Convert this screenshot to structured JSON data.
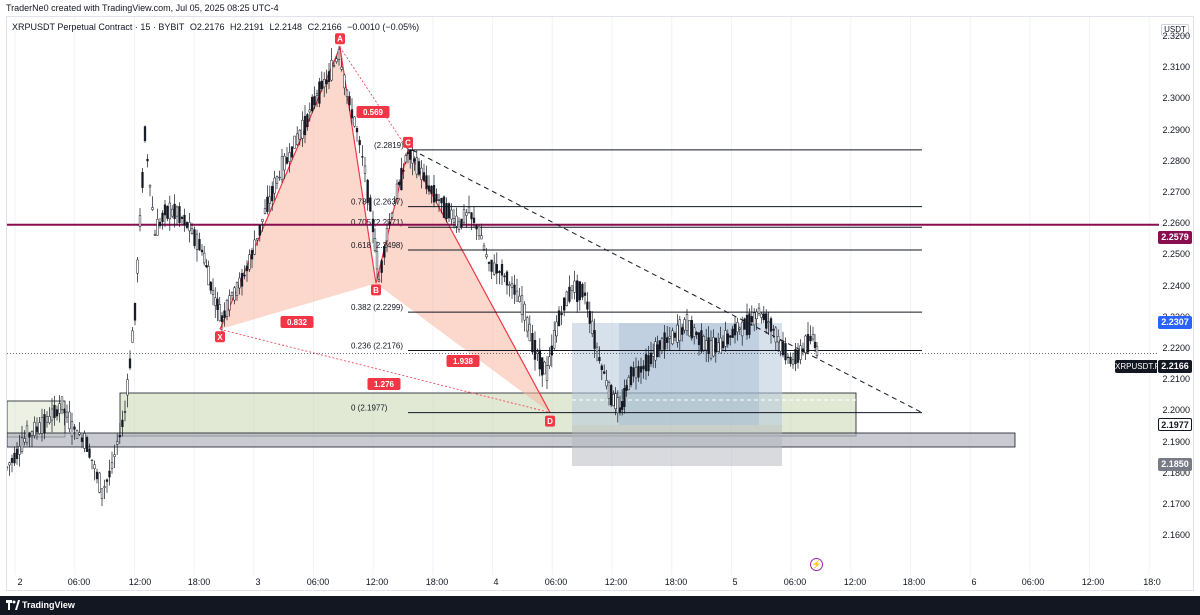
{
  "header": {
    "credit": "TraderNe0 created with TradingView.com, Jul 05, 2025 08:25 UTC-4"
  },
  "legend": {
    "symbol": "XRPUSDT Perpetual Contract · 15 · BYBIT",
    "open": "O2.2176",
    "high": "H2.2191",
    "low": "L2.2148",
    "close": "C2.2166",
    "change": "−0.0010 (−0.05%)"
  },
  "price_axis": {
    "currency": "USDT",
    "ticks": [
      "2.3200",
      "2.3100",
      "2.3000",
      "2.2900",
      "2.2800",
      "2.2700",
      "2.2600",
      "2.2500",
      "2.2400",
      "2.2300",
      "2.2200",
      "2.2100",
      "2.2000",
      "2.1900",
      "2.1800",
      "2.1700",
      "2.1600"
    ],
    "labels": {
      "magenta_line": "2.2579",
      "blue_level": "2.2307",
      "current": "2.2166",
      "d_level": "2.1977",
      "gray_level": "2.1850"
    },
    "symbol_tag": "XRPUSDT.P"
  },
  "time_axis": {
    "ticks": [
      "2",
      "06:00",
      "12:00",
      "18:00",
      "3",
      "06:00",
      "12:00",
      "18:00",
      "4",
      "06:00",
      "12:00",
      "18:00",
      "5",
      "06:00",
      "12:00",
      "18:00",
      "6",
      "06:00",
      "12:00",
      "18:0"
    ]
  },
  "pattern": {
    "points": [
      "X",
      "A",
      "B",
      "C",
      "D"
    ],
    "ratios": {
      "xab": "0.832",
      "abc": "0.569",
      "bcd": "1.938",
      "xad": "1.276"
    }
  },
  "fib_levels": [
    {
      "label": "(2.2819)"
    },
    {
      "label": "0.786 (2.2637)"
    },
    {
      "label": "0.705 (2.2571)"
    },
    {
      "label": "0.618 (2.2498)"
    },
    {
      "label": "0.382 (2.2299)"
    },
    {
      "label": "0.236 (2.2176)"
    },
    {
      "label": "0 (2.1977)"
    }
  ],
  "colors": {
    "bull": "#000000",
    "bear": "#000000",
    "pattern_fill": "#f7b7a3",
    "pattern_stroke": "#f23645",
    "magenta": "#880e4f",
    "blue_label": "#2962ff",
    "zone_green": "#c8d6b0",
    "zone_gray": "#b2b5be",
    "zone_blue": "#b6c8dc"
  },
  "footer": {
    "brand": "TradingView"
  }
}
